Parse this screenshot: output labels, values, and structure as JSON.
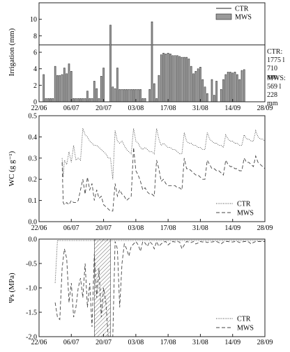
{
  "chart_data": [
    {
      "type": "bar",
      "ylabel": "Irrigation (mm)",
      "ylim": [
        0,
        12
      ],
      "yticks": [
        0,
        2,
        4,
        6,
        8,
        10
      ],
      "xticklabels": [
        "22/06",
        "06/07",
        "20/07",
        "03/08",
        "17/08",
        "31/08",
        "14/09",
        "28/09"
      ],
      "xrange_days": [
        0,
        98
      ],
      "legend": {
        "position": "top-right",
        "entries": [
          "CTR",
          "MWS"
        ]
      },
      "series": [
        {
          "name": "CTR",
          "kind": "line",
          "value": 6.9
        },
        {
          "name": "MWS",
          "kind": "bar",
          "x_day": [
            2,
            3,
            4,
            5,
            6,
            7,
            8,
            9,
            10,
            11,
            12,
            13,
            14,
            15,
            16,
            17,
            18,
            19,
            20,
            21,
            22,
            23,
            24,
            25,
            26,
            27,
            28,
            31,
            32,
            33,
            34,
            35,
            36,
            37,
            38,
            39,
            40,
            41,
            42,
            43,
            44,
            45,
            46,
            48,
            49,
            50,
            51,
            52,
            53,
            54,
            55,
            56,
            57,
            58,
            59,
            60,
            61,
            62,
            63,
            64,
            65,
            66,
            67,
            68,
            69,
            70,
            71,
            72,
            73,
            75,
            76,
            77,
            79,
            80,
            81,
            82,
            83,
            84,
            85,
            86,
            87,
            88,
            89
          ],
          "values": [
            3.3,
            0.4,
            0.4,
            0.4,
            0.4,
            4.3,
            3.2,
            3.2,
            3.3,
            4.1,
            3.4,
            4.6,
            3.7,
            0.4,
            0.4,
            0.4,
            0.4,
            0.4,
            0.4,
            1.3,
            0.4,
            0.4,
            2.5,
            1.6,
            0.4,
            3.1,
            4.1,
            9.3,
            1.8,
            1.6,
            4.1,
            1.5,
            1.5,
            1.5,
            1.5,
            1.5,
            1.5,
            1.5,
            1.5,
            1.5,
            1.5,
            0.4,
            0.4,
            1.5,
            9.7,
            2.2,
            0.4,
            3.2,
            5.7,
            5.9,
            5.8,
            5.9,
            5.8,
            5.6,
            5.6,
            5.6,
            5.5,
            5.4,
            5.4,
            5.4,
            5.2,
            4.3,
            3.4,
            3.7,
            4.0,
            4.2,
            2.7,
            1.8,
            1.0,
            2.7,
            0.8,
            2.5,
            1.5,
            2.7,
            3.3,
            3.6,
            3.6,
            3.5,
            3.6,
            3.3,
            2.7,
            3.8,
            3.9
          ]
        }
      ]
    },
    {
      "type": "line",
      "ylabel": "WC (g g⁻¹)",
      "ylim": [
        0,
        0.5
      ],
      "yticks": [
        "0.0",
        "0.1",
        "0.2",
        "0.3",
        "0.4",
        "0.5"
      ],
      "xticklabels": [
        "22/06",
        "06/07",
        "20/07",
        "03/08",
        "17/08",
        "31/08",
        "14/09",
        "28/09"
      ],
      "xrange_days": [
        0,
        98
      ],
      "legend": {
        "position": "bottom-right",
        "entries": [
          "CTR",
          "MWS"
        ]
      },
      "series": [
        {
          "name": "CTR",
          "style": "dotted",
          "x": [
            10,
            10.5,
            11,
            12,
            13,
            14,
            15,
            16,
            17,
            18,
            19,
            20,
            21,
            22,
            23,
            24,
            25,
            26,
            27,
            28,
            29,
            30,
            31,
            32,
            33,
            34,
            35,
            36,
            37,
            38,
            39,
            40,
            41,
            42,
            43,
            44,
            45,
            46,
            47,
            48,
            49,
            50,
            51,
            52,
            53,
            54,
            55,
            56,
            57,
            58,
            59,
            60,
            61,
            62,
            63,
            64,
            65,
            66,
            67,
            68,
            69,
            70,
            71,
            72,
            73,
            74,
            75,
            76,
            77,
            78,
            79,
            80,
            81,
            82,
            83,
            84,
            85,
            86,
            87,
            88,
            89,
            90,
            91,
            92,
            93,
            94,
            95,
            96,
            97,
            98
          ],
          "y": [
            0.3,
            0.21,
            0.29,
            0.27,
            0.33,
            0.28,
            0.36,
            0.29,
            0.3,
            0.29,
            0.44,
            0.41,
            0.4,
            0.38,
            0.37,
            0.36,
            0.36,
            0.35,
            0.34,
            0.33,
            0.32,
            0.3,
            0.3,
            0.2,
            0.43,
            0.38,
            0.37,
            0.38,
            0.36,
            0.34,
            0.33,
            0.32,
            0.44,
            0.38,
            0.37,
            0.35,
            0.34,
            0.35,
            0.34,
            0.33,
            0.33,
            0.32,
            0.44,
            0.39,
            0.36,
            0.37,
            0.36,
            0.35,
            0.35,
            0.34,
            0.34,
            0.33,
            0.32,
            0.32,
            0.42,
            0.38,
            0.37,
            0.37,
            0.36,
            0.36,
            0.35,
            0.35,
            0.34,
            0.34,
            0.42,
            0.39,
            0.38,
            0.37,
            0.37,
            0.36,
            0.36,
            0.35,
            0.41,
            0.39,
            0.38,
            0.38,
            0.37,
            0.37,
            0.36,
            0.36,
            0.41,
            0.39,
            0.39,
            0.38,
            0.38,
            0.43,
            0.4,
            0.39,
            0.39,
            0.38
          ]
        },
        {
          "name": "MWS",
          "style": "dashed",
          "x": [
            10,
            10.5,
            11,
            12,
            13,
            14,
            15,
            16,
            17,
            18,
            19,
            20,
            21,
            22,
            23,
            24,
            25,
            26,
            27,
            28,
            29,
            30,
            31,
            32,
            33,
            34,
            35,
            36,
            37,
            38,
            39,
            40,
            41,
            42,
            43,
            44,
            45,
            46,
            47,
            48,
            49,
            50,
            51,
            52,
            53,
            54,
            55,
            56,
            57,
            58,
            59,
            60,
            61,
            62,
            63,
            64,
            65,
            66,
            67,
            68,
            69,
            70,
            71,
            72,
            73,
            74,
            75,
            76,
            77,
            78,
            79,
            80,
            81,
            82,
            83,
            84,
            85,
            86,
            87,
            88,
            89,
            90,
            91,
            92,
            93,
            94,
            95,
            96,
            97,
            98
          ],
          "y": [
            0.28,
            0.09,
            0.08,
            0.09,
            0.08,
            0.1,
            0.09,
            0.09,
            0.1,
            0.15,
            0.2,
            0.13,
            0.21,
            0.15,
            0.18,
            0.1,
            0.15,
            0.11,
            0.12,
            0.08,
            0.07,
            0.06,
            0.05,
            0.05,
            0.18,
            0.12,
            0.15,
            0.13,
            0.12,
            0.1,
            0.11,
            0.12,
            0.35,
            0.24,
            0.22,
            0.19,
            0.15,
            0.16,
            0.14,
            0.13,
            0.13,
            0.12,
            0.29,
            0.25,
            0.19,
            0.2,
            0.18,
            0.17,
            0.17,
            0.17,
            0.17,
            0.16,
            0.16,
            0.15,
            0.3,
            0.25,
            0.25,
            0.24,
            0.23,
            0.22,
            0.22,
            0.21,
            0.2,
            0.2,
            0.29,
            0.27,
            0.25,
            0.25,
            0.24,
            0.24,
            0.23,
            0.22,
            0.29,
            0.27,
            0.26,
            0.26,
            0.25,
            0.25,
            0.24,
            0.24,
            0.3,
            0.28,
            0.28,
            0.27,
            0.26,
            0.31,
            0.28,
            0.27,
            0.26,
            0.25
          ]
        }
      ]
    },
    {
      "type": "line",
      "ylabel": "Ψs (MPa)",
      "ylim": [
        -2.0,
        0.0
      ],
      "yticks": [
        "-2.0",
        "-1.5",
        "-1.0",
        "-0.5",
        "0.0"
      ],
      "xticklabels": [
        "22/06",
        "06/07",
        "20/07",
        "03/08",
        "17/08",
        "31/08",
        "14/09",
        "28/09"
      ],
      "xrange_days": [
        0,
        98
      ],
      "hatched_region_days": [
        24,
        31
      ],
      "legend": {
        "position": "bottom-right",
        "entries": [
          "CTR",
          "MWS"
        ]
      },
      "series": [
        {
          "name": "CTR",
          "style": "dotted",
          "x": [
            7,
            8,
            10,
            14,
            20,
            30,
            40,
            50,
            60,
            70,
            80,
            90,
            98
          ],
          "y": [
            -0.9,
            -0.03,
            -0.03,
            -0.03,
            -0.03,
            -0.03,
            -0.03,
            -0.03,
            -0.03,
            -0.03,
            -0.03,
            -0.03,
            -0.03
          ]
        },
        {
          "name": "MWS",
          "style": "dashed",
          "x": [
            7,
            8,
            9,
            10,
            11,
            12,
            13,
            14,
            15,
            16,
            17,
            18,
            19,
            20,
            21,
            22,
            23,
            24,
            25,
            26,
            27,
            28,
            29,
            30,
            31,
            32,
            33,
            34,
            35,
            36,
            37,
            38,
            39,
            40,
            41,
            42,
            43,
            44,
            45,
            46,
            47,
            48,
            49,
            50,
            51,
            52,
            53,
            54,
            55,
            56,
            57,
            58,
            59,
            60,
            61,
            62,
            63,
            64,
            65,
            66,
            67,
            68,
            69,
            70,
            71,
            72,
            73,
            74,
            75,
            76,
            77,
            78,
            79,
            80,
            81,
            82,
            83,
            84,
            85,
            86,
            87,
            88,
            89,
            90,
            91,
            92,
            93,
            94,
            95,
            96,
            97,
            98
          ],
          "y": [
            -1.3,
            -1.6,
            -1.65,
            -0.6,
            -0.2,
            -0.4,
            -1.3,
            -0.9,
            -1.6,
            -1.4,
            -1.0,
            -0.8,
            -1.2,
            -0.5,
            -1.4,
            -0.9,
            -1.8,
            -0.3,
            -1.2,
            -0.6,
            -1.6,
            -1.0,
            -1.3,
            -2.0,
            -2.0,
            -2.0,
            -0.05,
            -0.2,
            -1.4,
            -0.5,
            -0.1,
            -0.2,
            -0.35,
            -0.15,
            -0.1,
            -0.05,
            -0.12,
            -0.25,
            -0.05,
            -0.08,
            -0.15,
            -0.05,
            -0.1,
            -0.2,
            -0.05,
            -0.15,
            -0.1,
            -0.06,
            -0.05,
            -0.12,
            -0.08,
            -0.05,
            -0.06,
            -0.05,
            -0.06,
            -0.2,
            -0.12,
            -0.05,
            -0.06,
            -0.07,
            -0.05,
            -0.1,
            -0.08,
            -0.05,
            -0.06,
            -0.05,
            -0.07,
            -0.06,
            -0.06,
            -0.05,
            -0.05,
            -0.07,
            -0.1,
            -0.06,
            -0.05,
            -0.05,
            -0.06,
            -0.06,
            -0.05,
            -0.05,
            -0.07,
            -0.06,
            -0.05,
            -0.05,
            -0.06,
            -0.1,
            -0.07,
            -0.05,
            -0.05,
            -0.05,
            -0.05,
            -0.05
          ]
        }
      ]
    }
  ],
  "annotations": {
    "ctr_label": "CTR:",
    "ctr_volume": "1775 l",
    "ctr_depth": "710 mm",
    "mws_label": "MWS:",
    "mws_volume": "569 l",
    "mws_depth": "228 mm"
  }
}
